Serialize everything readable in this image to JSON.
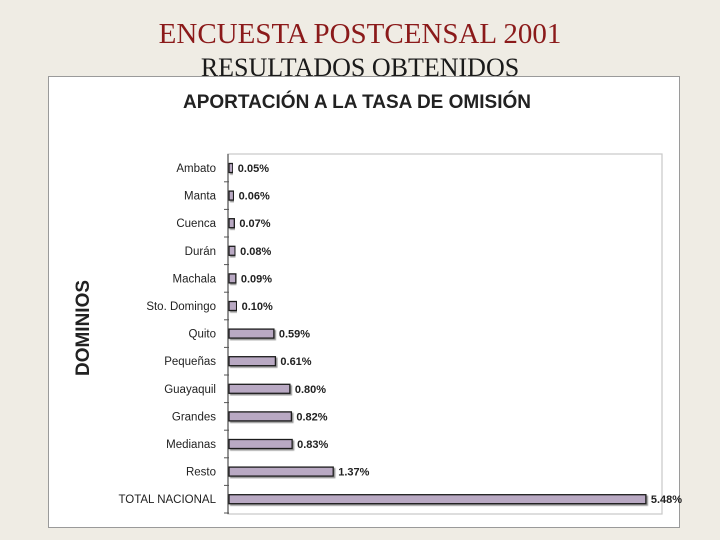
{
  "slide": {
    "title": "ENCUESTA POSTCENSAL 2001",
    "subtitle": "RESULTADOS OBTENIDOS"
  },
  "chart_data": {
    "type": "bar",
    "orientation": "horizontal",
    "title": "APORTACIÓN A LA TASA DE OMISIÓN",
    "ylabel": "DOMINIOS",
    "xlabel": "",
    "xlim": [
      0,
      5.6
    ],
    "grid": false,
    "legend": "none",
    "categories": [
      "Ambato",
      "Manta",
      "Cuenca",
      "Durán",
      "Machala",
      "Sto. Domingo",
      "Quito",
      "Pequeñas",
      "Guayaquil",
      "Grandes",
      "Medianas",
      "Resto",
      "TOTAL NACIONAL"
    ],
    "values": [
      0.05,
      0.06,
      0.07,
      0.08,
      0.09,
      0.1,
      0.59,
      0.61,
      0.8,
      0.82,
      0.83,
      1.37,
      5.48
    ],
    "labels": [
      "0.05%",
      "0.06%",
      "0.07%",
      "0.08%",
      "0.09%",
      "0.10%",
      "0.59%",
      "0.61%",
      "0.80%",
      "0.82%",
      "0.83%",
      "1.37%",
      "5.48%"
    ],
    "colors": {
      "bar_fill": "#b9a9c3",
      "bar_edge": "#1c1c1c",
      "title": "#8b1a1a",
      "text": "#222222"
    }
  }
}
